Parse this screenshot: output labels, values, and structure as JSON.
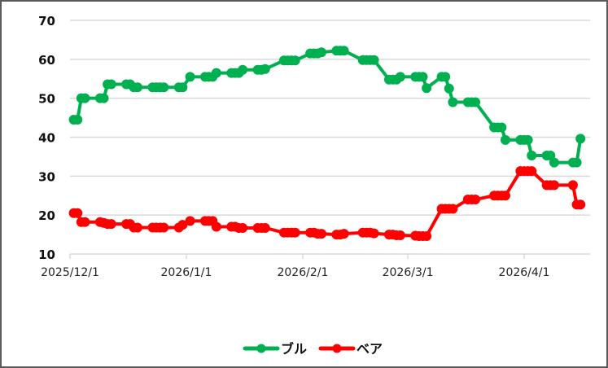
{
  "chart_data": {
    "type": "line",
    "title": "",
    "xlabel": "",
    "ylabel": "",
    "ylim": [
      10,
      70
    ],
    "yticks": [
      10,
      20,
      30,
      40,
      50,
      60,
      70
    ],
    "xtick_labels": [
      "2025/12/1",
      "2026/1/1",
      "2026/2/1",
      "2026/3/1",
      "2026/4/1"
    ],
    "grid": true,
    "legend_position": "bottom",
    "x": [
      "2025/12/2",
      "2025/12/3",
      "2025/12/4",
      "2025/12/5",
      "2025/12/9",
      "2025/12/10",
      "2025/12/11",
      "2025/12/12",
      "2025/12/16",
      "2025/12/17",
      "2025/12/18",
      "2025/12/19",
      "2025/12/23",
      "2025/12/24",
      "2025/12/25",
      "2025/12/26",
      "2025/12/30",
      "2025/12/31",
      "2026/1/2",
      "2026/1/6",
      "2026/1/7",
      "2026/1/8",
      "2026/1/9",
      "2026/1/13",
      "2026/1/14",
      "2026/1/15",
      "2026/1/16",
      "2026/1/20",
      "2026/1/21",
      "2026/1/22",
      "2026/1/27",
      "2026/1/28",
      "2026/1/29",
      "2026/1/30",
      "2026/2/3",
      "2026/2/4",
      "2026/2/5",
      "2026/2/6",
      "2026/2/10",
      "2026/2/11",
      "2026/2/12",
      "2026/2/17",
      "2026/2/18",
      "2026/2/19",
      "2026/2/20",
      "2026/2/24",
      "2026/2/25",
      "2026/2/26",
      "2026/2/27",
      "2026/3/3",
      "2026/3/4",
      "2026/3/5",
      "2026/3/6",
      "2026/3/10",
      "2026/3/11",
      "2026/3/12",
      "2026/3/13",
      "2026/3/17",
      "2026/3/18",
      "2026/3/19",
      "2026/3/24",
      "2026/3/25",
      "2026/3/26",
      "2026/3/27",
      "2026/3/31",
      "2026/4/1",
      "2026/4/2",
      "2026/4/3",
      "2026/4/7",
      "2026/4/8",
      "2026/4/9",
      "2026/4/14",
      "2026/4/15",
      "2026/4/16"
    ],
    "series": [
      {
        "name": "ブル",
        "color": "#00b050",
        "values": [
          44.5,
          44.5,
          50.0,
          50.0,
          50.0,
          50.0,
          53.6,
          53.6,
          53.6,
          53.6,
          52.8,
          52.8,
          52.8,
          52.8,
          52.8,
          52.8,
          52.8,
          52.8,
          55.5,
          55.5,
          55.5,
          55.5,
          56.5,
          56.5,
          56.5,
          56.5,
          57.3,
          57.3,
          57.3,
          57.5,
          59.7,
          59.7,
          59.7,
          59.7,
          61.5,
          61.5,
          61.5,
          61.8,
          62.2,
          62.2,
          62.2,
          59.8,
          59.8,
          59.8,
          59.8,
          54.8,
          54.8,
          54.8,
          55.5,
          55.5,
          55.5,
          55.5,
          52.6,
          55.5,
          55.5,
          52.5,
          49.0,
          49.0,
          49.0,
          49.0,
          42.5,
          42.5,
          42.5,
          39.3,
          39.3,
          39.3,
          39.3,
          35.3,
          35.3,
          35.3,
          33.5,
          33.5,
          33.5,
          39.6
        ]
      },
      {
        "name": "ベア",
        "color": "#ff0000",
        "values": [
          20.5,
          20.5,
          18.2,
          18.2,
          18.2,
          18.0,
          17.7,
          17.7,
          17.7,
          17.7,
          16.8,
          16.8,
          16.8,
          16.8,
          16.8,
          16.8,
          16.8,
          17.5,
          18.5,
          18.5,
          18.5,
          18.5,
          17.0,
          17.0,
          17.0,
          16.7,
          16.7,
          16.7,
          16.7,
          16.7,
          15.5,
          15.5,
          15.5,
          15.5,
          15.5,
          15.5,
          15.2,
          15.2,
          15.0,
          15.0,
          15.2,
          15.5,
          15.5,
          15.5,
          15.3,
          15.0,
          15.0,
          14.8,
          14.8,
          14.7,
          14.6,
          14.6,
          14.6,
          21.6,
          21.6,
          21.6,
          21.6,
          24.0,
          24.0,
          24.0,
          25.0,
          25.0,
          25.0,
          25.0,
          31.3,
          31.3,
          31.3,
          31.3,
          27.7,
          27.7,
          27.7,
          27.7,
          22.7,
          22.7
        ]
      }
    ]
  },
  "legend": {
    "items": [
      {
        "label": "ブル",
        "color": "#00b050"
      },
      {
        "label": "ベア",
        "color": "#ff0000"
      }
    ]
  },
  "axes": {
    "y_labels": [
      "70",
      "60",
      "50",
      "40",
      "30",
      "20",
      "10"
    ],
    "x_labels": [
      "2025/12/1",
      "2026/1/1",
      "2026/2/1",
      "2026/3/1",
      "2026/4/1"
    ]
  }
}
